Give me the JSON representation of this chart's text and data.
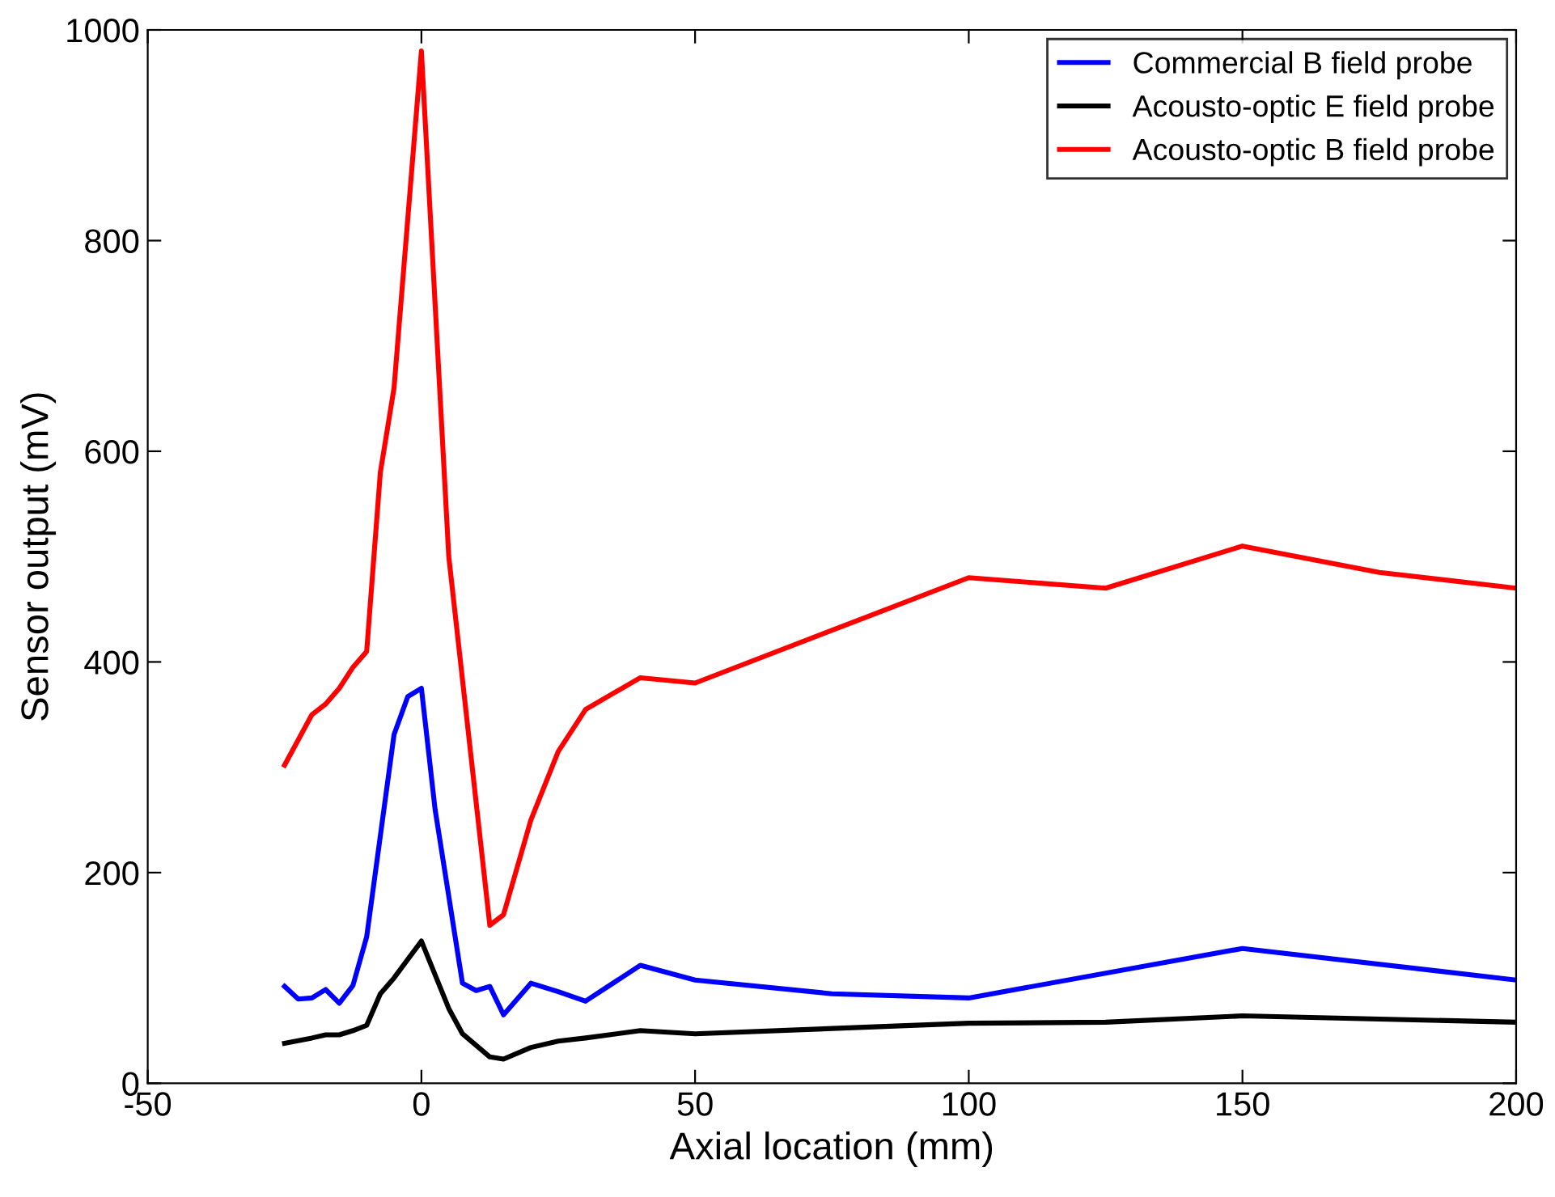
{
  "chart_data": {
    "type": "line",
    "xlabel": "Axial location (mm)",
    "ylabel": "Sensor output (mV)",
    "xlim": [
      -50,
      200
    ],
    "xticks": [
      -50,
      0,
      50,
      100,
      150,
      200
    ],
    "ylim": [
      0,
      1000
    ],
    "yticks": [
      0,
      200,
      400,
      600,
      800,
      1000
    ],
    "grid": false,
    "legend": "top right",
    "marker": "none",
    "line_style": "solid",
    "series": [
      {
        "name": "Commercial B field probe",
        "color": "#0000ff",
        "x": [
          -25,
          -22.5,
          -20,
          -17.5,
          -15,
          -12.5,
          -10,
          -5,
          -2.5,
          0,
          2.5,
          7.5,
          10,
          12.5,
          15,
          20,
          25,
          30,
          40,
          50,
          75,
          100,
          150,
          200
        ],
        "values": [
          92,
          80,
          81,
          89,
          76,
          93,
          139,
          331,
          367,
          375,
          260,
          95,
          88,
          92,
          65,
          95,
          87,
          78,
          112,
          98,
          85,
          81,
          128,
          98
        ]
      },
      {
        "name": "Acousto-optic E field probe",
        "color": "#000000",
        "x": [
          -25,
          -20,
          -17.5,
          -15,
          -12.5,
          -10,
          -7.5,
          -5,
          0,
          5,
          7.5,
          12.5,
          15,
          20,
          25,
          30,
          40,
          50,
          100,
          125,
          150,
          175,
          200
        ],
        "values": [
          38,
          43,
          46,
          46,
          50,
          55,
          85,
          100,
          135,
          71,
          47,
          25,
          23,
          34,
          40,
          43,
          50,
          47,
          57,
          58,
          64,
          61,
          58
        ]
      },
      {
        "name": "Acousto-optic B field probe",
        "color": "#ff0000",
        "x": [
          -25,
          -20,
          -17.5,
          -15,
          -12.5,
          -10,
          -7.5,
          -5,
          0,
          5,
          12.5,
          15,
          20,
          25,
          30,
          40,
          50,
          100,
          125,
          150,
          175,
          200
        ],
        "values": [
          302,
          350,
          360,
          375,
          395,
          410,
          580,
          660,
          980,
          500,
          150,
          160,
          250,
          315,
          355,
          385,
          380,
          480,
          470,
          510,
          485,
          470
        ]
      }
    ]
  }
}
